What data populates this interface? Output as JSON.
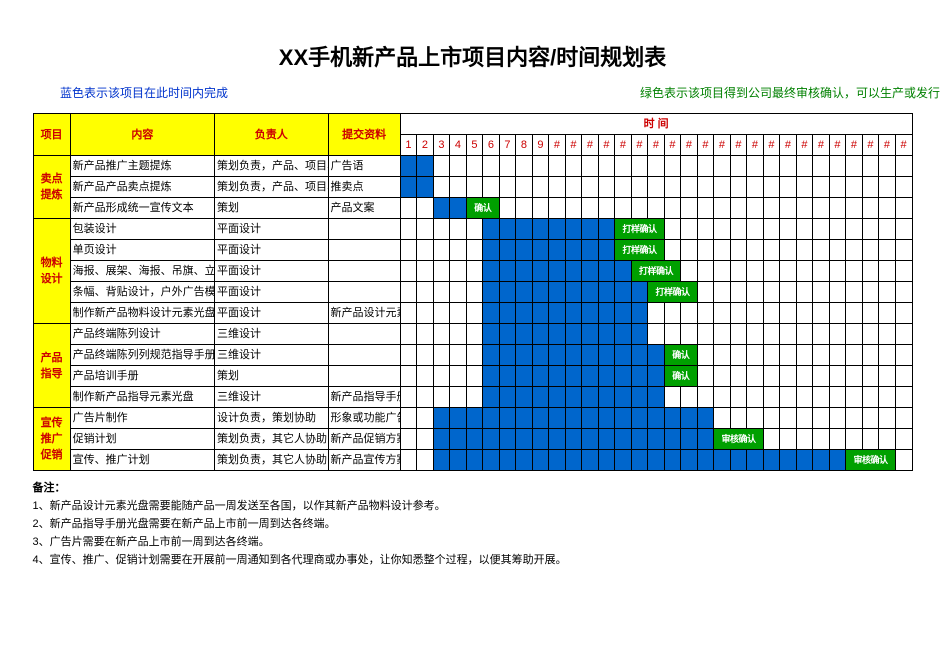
{
  "title": "XX手机新产品上市项目内容/时间规划表",
  "legend": {
    "blue": "蓝色表示该项目在此时间内完成",
    "green": "绿色表示该项目得到公司最终审核确认，可以生产或发行"
  },
  "headers": {
    "project": "项目",
    "content": "内容",
    "owner": "负责人",
    "deliver": "提交资料",
    "time": "时  间"
  },
  "time_slots": 31,
  "time_labels": [
    "1",
    "2",
    "3",
    "4",
    "5",
    "6",
    "7",
    "8",
    "9",
    "#",
    "#",
    "#",
    "#",
    "#",
    "#",
    "#",
    "#",
    "#",
    "#",
    "#",
    "#",
    "#",
    "#",
    "#",
    "#",
    "#",
    "#",
    "#",
    "#",
    "#",
    "#"
  ],
  "colors": {
    "fill": "#0066cc",
    "approve": "#00a000",
    "yellow": "#ffff00",
    "header_red": "#c00000"
  },
  "groups": [
    {
      "name": "卖点提炼",
      "rows": [
        {
          "content": "新产品推广主题提炼",
          "owner": "策划负责，产品、项目、市场协",
          "deliver": "广告语",
          "fill": [
            1,
            3
          ],
          "approve": null
        },
        {
          "content": "新产品产品卖点提炼",
          "owner": "策划负责，产品、项目、市场协助",
          "deliver": "推卖点",
          "fill": [
            1,
            3
          ],
          "approve": null
        },
        {
          "content": "新产品形成统一宣传文本",
          "owner": "策划",
          "deliver": "产品文案",
          "fill": [
            3,
            5
          ],
          "approve": {
            "at": 5,
            "span": 2,
            "label": "确认"
          }
        }
      ]
    },
    {
      "name": "物料设计",
      "rows": [
        {
          "content": "包装设计",
          "owner": "平面设计",
          "deliver": "",
          "fill": [
            6,
            14
          ],
          "approve": {
            "at": 14,
            "span": 3,
            "label": "打样确认"
          }
        },
        {
          "content": "单页设计",
          "owner": "平面设计",
          "deliver": "",
          "fill": [
            6,
            14
          ],
          "approve": {
            "at": 14,
            "span": 3,
            "label": "打样确认"
          }
        },
        {
          "content": "海报、展架、海报、吊旗、立牌设",
          "owner": "平面设计",
          "deliver": "",
          "fill": [
            6,
            15
          ],
          "approve": {
            "at": 15,
            "span": 3,
            "label": "打样确认"
          }
        },
        {
          "content": "条幅、背贴设计，户外广告模版",
          "owner": "平面设计",
          "deliver": "",
          "fill": [
            6,
            16
          ],
          "approve": {
            "at": 16,
            "span": 3,
            "label": "打样确认"
          }
        },
        {
          "content": "制作新产品物料设计元素光盘",
          "owner": "平面设计",
          "deliver": "新产品设计元素",
          "fill": [
            6,
            16
          ],
          "approve": null
        }
      ]
    },
    {
      "name": "产品指导",
      "rows": [
        {
          "content": "产品终端陈列设计",
          "owner": "三维设计",
          "deliver": "",
          "fill": [
            6,
            16
          ],
          "approve": null
        },
        {
          "content": "产品终端陈列列规范指导手册",
          "owner": "三维设计",
          "deliver": "",
          "fill": [
            6,
            17
          ],
          "approve": {
            "at": 17,
            "span": 2,
            "label": "确认"
          }
        },
        {
          "content": "产品培训手册",
          "owner": "策划",
          "deliver": "",
          "fill": [
            6,
            17
          ],
          "approve": {
            "at": 17,
            "span": 2,
            "label": "确认"
          }
        },
        {
          "content": "制作新产品指导元素光盘",
          "owner": "三维设计",
          "deliver": "新产品指导手册",
          "fill": [
            6,
            17
          ],
          "approve": null
        }
      ]
    },
    {
      "name": "宣传推广促销",
      "rows": [
        {
          "content": "广告片制作",
          "owner": "设计负责，策划协助",
          "deliver": "形象或功能广告",
          "fill": [
            3,
            20
          ],
          "approve": null
        },
        {
          "content": "促销计划",
          "owner": "策划负责，其它人协助",
          "deliver": "新产品促销方案",
          "fill": [
            3,
            20
          ],
          "approve": {
            "at": 20,
            "span": 3,
            "label": "审核确认"
          }
        },
        {
          "content": "宣传、推广计划",
          "owner": "策划负责，其它人协助",
          "deliver": "新产品宣传方案",
          "fill": [
            3,
            28
          ],
          "approve": {
            "at": 28,
            "span": 3,
            "label": "审核确认"
          }
        }
      ]
    }
  ],
  "notes_header": "备注：",
  "notes": [
    "1、新产品设计元素光盘需要能随产品一周发送至各国，以作其新产品物料设计参考。",
    "2、新产品指导手册光盘需要在新产品上市前一周到达各终端。",
    "3、广告片需要在新产品上市前一周到达各终端。",
    "4、宣传、推广、促销计划需要在开展前一周通知到各代理商或办事处，让你知悉整个过程，以便其筹助开展。"
  ]
}
